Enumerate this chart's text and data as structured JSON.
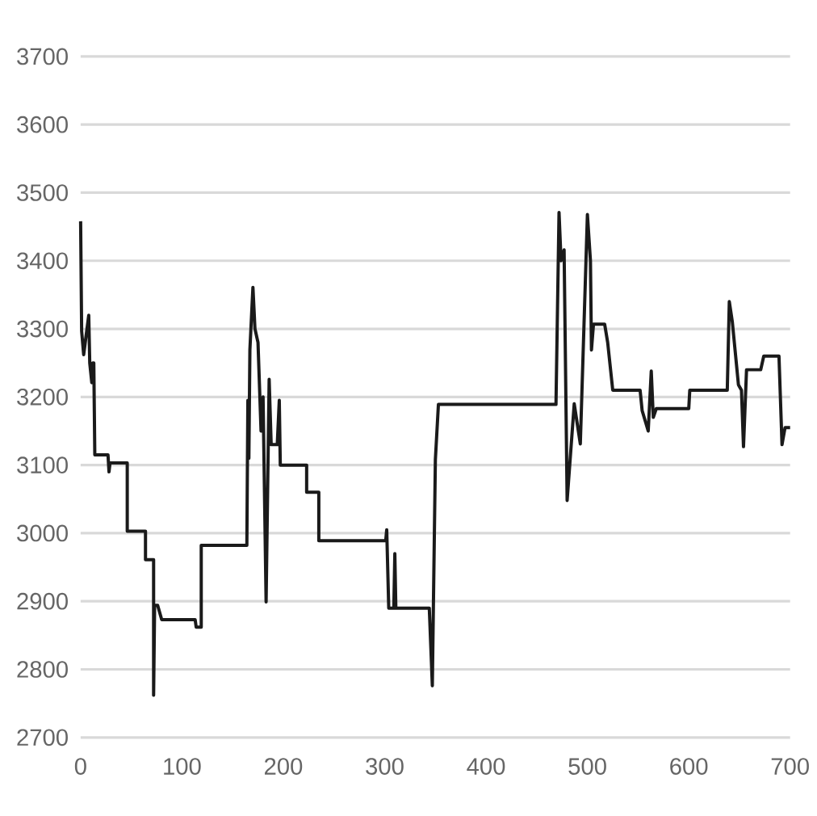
{
  "chart_data": {
    "type": "line",
    "xlim": [
      0,
      700
    ],
    "ylim": [
      2700,
      3700
    ],
    "xticks": [
      0,
      100,
      200,
      300,
      400,
      500,
      600,
      700
    ],
    "yticks": [
      2700,
      2800,
      2900,
      3000,
      3100,
      3200,
      3300,
      3400,
      3500,
      3600,
      3700
    ],
    "grid": "y",
    "marker": "none",
    "line_style": "solid",
    "series": [
      {
        "color": "#1a1a1a",
        "x": [
          0,
          1,
          3,
          8,
          9,
          11,
          12,
          13,
          14,
          14,
          27,
          28,
          29,
          46,
          46,
          64,
          64,
          72,
          72,
          73,
          76,
          80,
          113,
          114,
          119,
          119,
          164,
          165,
          166,
          167,
          170,
          172,
          175,
          178,
          180,
          183,
          186,
          188,
          194,
          196,
          197,
          223,
          223,
          235,
          235,
          301,
          302,
          304,
          309,
          310,
          311,
          344,
          347,
          350,
          353,
          469,
          472,
          474,
          477,
          480,
          487,
          493,
          500,
          503,
          504,
          506,
          517,
          520,
          525,
          552,
          554,
          560,
          563,
          565,
          568,
          600,
          601,
          638,
          640,
          643,
          649,
          652,
          654,
          657,
          671,
          674,
          689,
          692,
          695,
          700
        ],
        "values": [
          3458,
          3297,
          3262,
          3320,
          3250,
          3221,
          3250,
          3250,
          3115,
          3115,
          3115,
          3090,
          3103,
          3103,
          3003,
          3003,
          2961,
          2961,
          2762,
          2894,
          2894,
          2873,
          2873,
          2862,
          2862,
          2982,
          2982,
          3195,
          3110,
          3269,
          3361,
          3300,
          3280,
          3150,
          3200,
          2899,
          3226,
          3130,
          3130,
          3195,
          3100,
          3100,
          3060,
          3060,
          2989,
          2989,
          3005,
          2890,
          2890,
          2970,
          2890,
          2890,
          2776,
          3108,
          3189,
          3189,
          3471,
          3400,
          3416,
          3048,
          3190,
          3131,
          3468,
          3400,
          3269,
          3307,
          3307,
          3280,
          3210,
          3210,
          3180,
          3150,
          3238,
          3170,
          3183,
          3183,
          3210,
          3210,
          3340,
          3310,
          3218,
          3210,
          3127,
          3240,
          3240,
          3260,
          3260,
          3130,
          3155,
          3155
        ]
      }
    ]
  }
}
